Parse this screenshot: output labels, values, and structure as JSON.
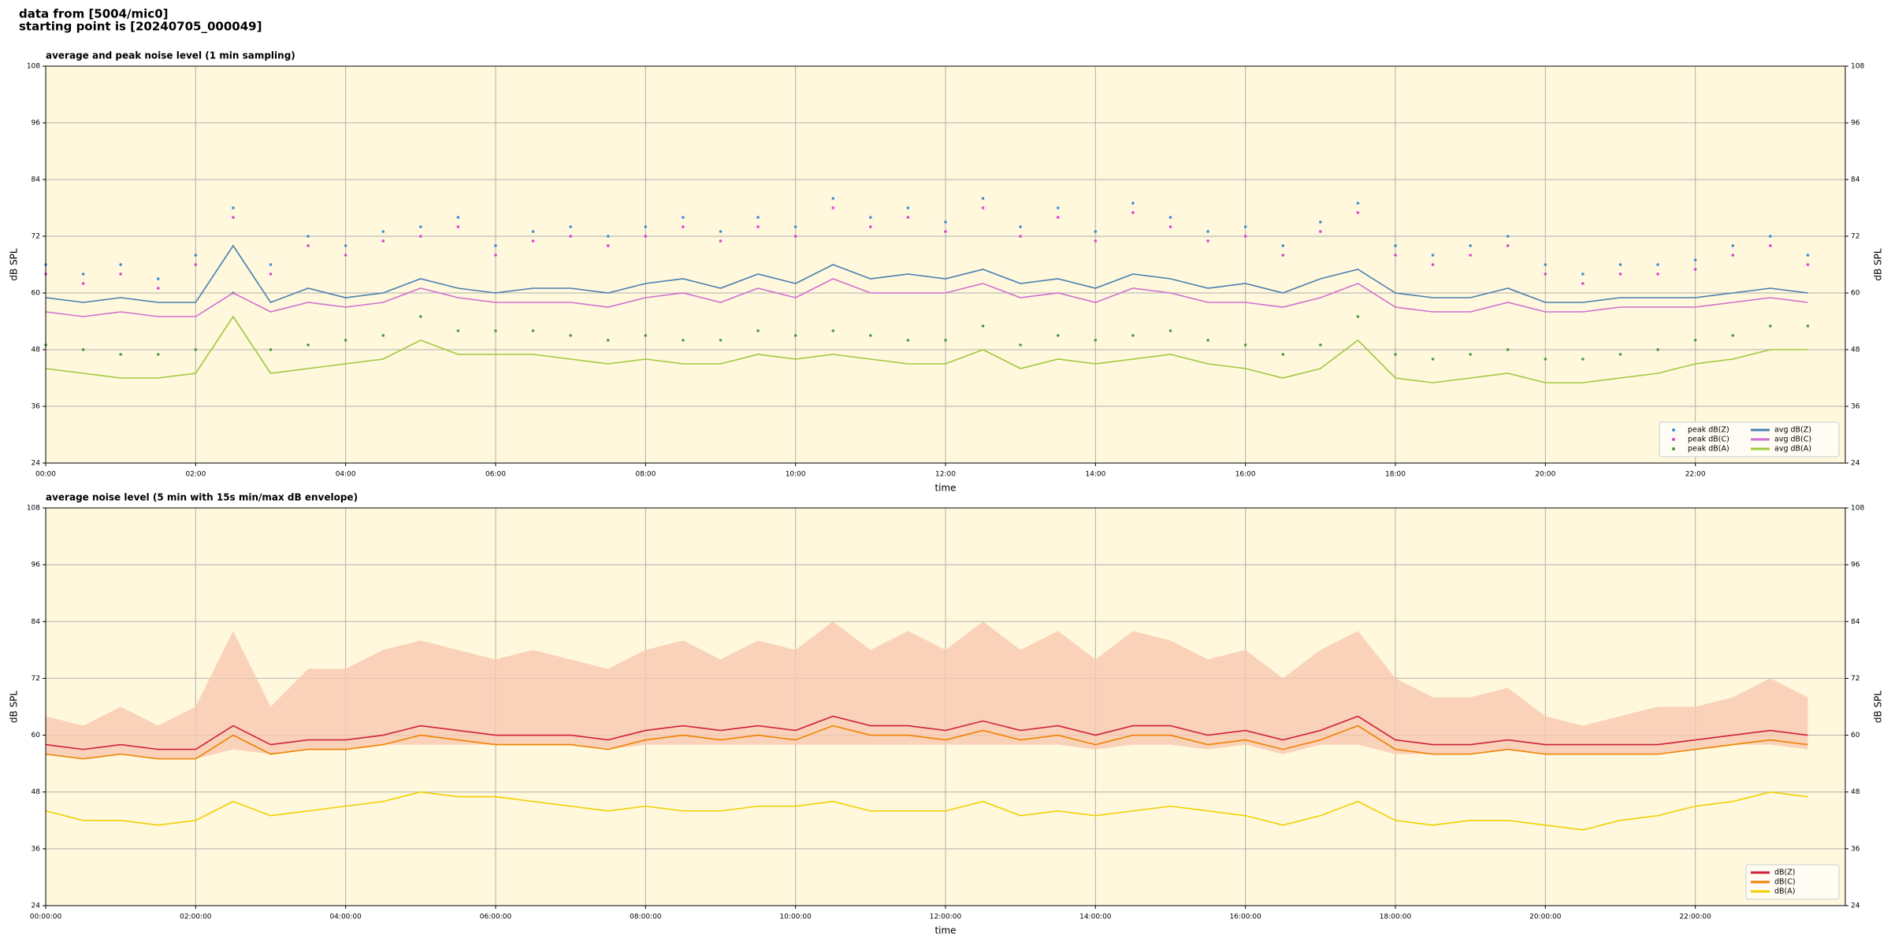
{
  "header": {
    "lines": [
      "data from [5004/mic0]",
      "starting point is [20240705_000049]"
    ]
  },
  "chart_data": [
    {
      "type": "line",
      "title": "average and peak noise level (1 min sampling)",
      "xlabel": "time",
      "ylabel": "dB SPL",
      "y2label": "dB SPL",
      "xlim": [
        0,
        24
      ],
      "ylim": [
        24,
        108
      ],
      "yticks": [
        24,
        36,
        48,
        60,
        72,
        84,
        96,
        108
      ],
      "xticks": [
        {
          "value": 0,
          "label": "00:00"
        },
        {
          "value": 2,
          "label": "02:00"
        },
        {
          "value": 4,
          "label": "04:00"
        },
        {
          "value": 6,
          "label": "06:00"
        },
        {
          "value": 8,
          "label": "08:00"
        },
        {
          "value": 10,
          "label": "10:00"
        },
        {
          "value": 12,
          "label": "12:00"
        },
        {
          "value": 14,
          "label": "14:00"
        },
        {
          "value": 16,
          "label": "16:00"
        },
        {
          "value": 18,
          "label": "18:00"
        },
        {
          "value": 20,
          "label": "20:00"
        },
        {
          "value": 22,
          "label": "22:00"
        }
      ],
      "grid": true,
      "legend": "lower right",
      "legend_columns": 2,
      "x": [
        0,
        0.5,
        1,
        1.5,
        2,
        2.5,
        3,
        3.5,
        4,
        4.5,
        5,
        5.5,
        6,
        6.5,
        7,
        7.5,
        8,
        8.5,
        9,
        9.5,
        10,
        10.5,
        11,
        11.5,
        12,
        12.5,
        13,
        13.5,
        14,
        14.5,
        15,
        15.5,
        16,
        16.5,
        17,
        17.5,
        18,
        18.5,
        19,
        19.5,
        20,
        20.5,
        21,
        21.5,
        22,
        22.5,
        23,
        23.5
      ],
      "series": [
        {
          "name": "peak dB(Z)",
          "kind": "scatter",
          "color": "#3a8fd8",
          "values": [
            66,
            64,
            66,
            63,
            68,
            78,
            66,
            72,
            70,
            73,
            74,
            76,
            70,
            73,
            74,
            72,
            74,
            76,
            73,
            76,
            74,
            80,
            76,
            78,
            75,
            80,
            74,
            78,
            73,
            79,
            76,
            73,
            74,
            70,
            75,
            79,
            70,
            68,
            70,
            72,
            66,
            64,
            66,
            66,
            67,
            70,
            72,
            68
          ]
        },
        {
          "name": "peak dB(C)",
          "kind": "scatter",
          "color": "#e040d0",
          "values": [
            64,
            62,
            64,
            61,
            66,
            76,
            64,
            70,
            68,
            71,
            72,
            74,
            68,
            71,
            72,
            70,
            72,
            74,
            71,
            74,
            72,
            78,
            74,
            76,
            73,
            78,
            72,
            76,
            71,
            77,
            74,
            71,
            72,
            68,
            73,
            77,
            68,
            66,
            68,
            70,
            64,
            62,
            64,
            64,
            65,
            68,
            70,
            66
          ]
        },
        {
          "name": "peak dB(A)",
          "kind": "scatter",
          "color": "#4c9a40",
          "values": [
            49,
            48,
            47,
            47,
            48,
            60,
            48,
            49,
            50,
            51,
            55,
            52,
            52,
            52,
            51,
            50,
            51,
            50,
            50,
            52,
            51,
            52,
            51,
            50,
            50,
            53,
            49,
            51,
            50,
            51,
            52,
            50,
            49,
            47,
            49,
            55,
            47,
            46,
            47,
            48,
            46,
            46,
            47,
            48,
            50,
            51,
            53,
            53
          ]
        },
        {
          "name": "avg dB(Z)",
          "kind": "line",
          "color": "#4a7fb0",
          "values": [
            59,
            58,
            59,
            58,
            58,
            70,
            58,
            61,
            59,
            60,
            63,
            61,
            60,
            61,
            61,
            60,
            62,
            63,
            61,
            64,
            62,
            66,
            63,
            64,
            63,
            65,
            62,
            63,
            61,
            64,
            63,
            61,
            62,
            60,
            63,
            65,
            60,
            59,
            59,
            61,
            58,
            58,
            59,
            59,
            59,
            60,
            61,
            60
          ]
        },
        {
          "name": "avg dB(C)",
          "kind": "line",
          "color": "#d070d0",
          "values": [
            56,
            55,
            56,
            55,
            55,
            60,
            56,
            58,
            57,
            58,
            61,
            59,
            58,
            58,
            58,
            57,
            59,
            60,
            58,
            61,
            59,
            63,
            60,
            60,
            60,
            62,
            59,
            60,
            58,
            61,
            60,
            58,
            58,
            57,
            59,
            62,
            57,
            56,
            56,
            58,
            56,
            56,
            57,
            57,
            57,
            58,
            59,
            58
          ]
        },
        {
          "name": "avg dB(A)",
          "kind": "line",
          "color": "#a0c840",
          "values": [
            44,
            43,
            42,
            42,
            43,
            55,
            43,
            44,
            45,
            46,
            50,
            47,
            47,
            47,
            46,
            45,
            46,
            45,
            45,
            47,
            46,
            47,
            46,
            45,
            45,
            48,
            44,
            46,
            45,
            46,
            47,
            45,
            44,
            42,
            44,
            50,
            42,
            41,
            42,
            43,
            41,
            41,
            42,
            43,
            45,
            46,
            48,
            48
          ]
        }
      ]
    },
    {
      "type": "line",
      "title": "average noise level (5 min with 15s min/max dB envelope)",
      "xlabel": "time",
      "ylabel": "dB SPL",
      "y2label": "dB SPL",
      "xlim": [
        0,
        24
      ],
      "ylim": [
        24,
        108
      ],
      "yticks": [
        24,
        36,
        48,
        60,
        72,
        84,
        96,
        108
      ],
      "xticks": [
        {
          "value": 0,
          "label": "00:00:00"
        },
        {
          "value": 2,
          "label": "02:00:00"
        },
        {
          "value": 4,
          "label": "04:00:00"
        },
        {
          "value": 6,
          "label": "06:00:00"
        },
        {
          "value": 8,
          "label": "08:00:00"
        },
        {
          "value": 10,
          "label": "10:00:00"
        },
        {
          "value": 12,
          "label": "12:00:00"
        },
        {
          "value": 14,
          "label": "14:00:00"
        },
        {
          "value": 16,
          "label": "16:00:00"
        },
        {
          "value": 18,
          "label": "18:00:00"
        },
        {
          "value": 20,
          "label": "20:00:00"
        },
        {
          "value": 22,
          "label": "22:00:00"
        }
      ],
      "grid": true,
      "legend": "lower right",
      "legend_columns": 1,
      "x": [
        0,
        0.5,
        1,
        1.5,
        2,
        2.5,
        3,
        3.5,
        4,
        4.5,
        5,
        5.5,
        6,
        6.5,
        7,
        7.5,
        8,
        8.5,
        9,
        9.5,
        10,
        10.5,
        11,
        11.5,
        12,
        12.5,
        13,
        13.5,
        14,
        14.5,
        15,
        15.5,
        16,
        16.5,
        17,
        17.5,
        18,
        18.5,
        19,
        19.5,
        20,
        20.5,
        21,
        21.5,
        22,
        22.5,
        23,
        23.5
      ],
      "envelope": {
        "color": "#f7c8b0",
        "upper": [
          64,
          62,
          66,
          62,
          66,
          82,
          66,
          74,
          74,
          78,
          80,
          78,
          76,
          78,
          76,
          74,
          78,
          80,
          76,
          80,
          78,
          84,
          78,
          82,
          78,
          84,
          78,
          82,
          76,
          82,
          80,
          76,
          78,
          72,
          78,
          82,
          72,
          68,
          68,
          70,
          64,
          62,
          64,
          66,
          66,
          68,
          72,
          68
        ],
        "lower": [
          56,
          55,
          56,
          55,
          55,
          57,
          56,
          57,
          57,
          58,
          58,
          58,
          58,
          58,
          58,
          57,
          58,
          58,
          58,
          58,
          58,
          58,
          58,
          58,
          58,
          58,
          58,
          58,
          57,
          58,
          58,
          57,
          58,
          56,
          58,
          58,
          56,
          56,
          56,
          57,
          56,
          56,
          56,
          56,
          57,
          58,
          58,
          57
        ]
      },
      "series": [
        {
          "name": "dB(Z)",
          "kind": "line",
          "color": "#d0203a",
          "values": [
            58,
            57,
            58,
            57,
            57,
            62,
            58,
            59,
            59,
            60,
            62,
            61,
            60,
            60,
            60,
            59,
            61,
            62,
            61,
            62,
            61,
            64,
            62,
            62,
            61,
            63,
            61,
            62,
            60,
            62,
            62,
            60,
            61,
            59,
            61,
            64,
            59,
            58,
            58,
            59,
            58,
            58,
            58,
            58,
            59,
            60,
            61,
            60
          ]
        },
        {
          "name": "dB(C)",
          "kind": "line",
          "color": "#f08000",
          "values": [
            56,
            55,
            56,
            55,
            55,
            60,
            56,
            57,
            57,
            58,
            60,
            59,
            58,
            58,
            58,
            57,
            59,
            60,
            59,
            60,
            59,
            62,
            60,
            60,
            59,
            61,
            59,
            60,
            58,
            60,
            60,
            58,
            59,
            57,
            59,
            62,
            57,
            56,
            56,
            57,
            56,
            56,
            56,
            56,
            57,
            58,
            59,
            58
          ]
        },
        {
          "name": "dB(A)",
          "kind": "line",
          "color": "#f0d000",
          "values": [
            44,
            42,
            42,
            41,
            42,
            46,
            43,
            44,
            45,
            46,
            48,
            47,
            47,
            46,
            45,
            44,
            45,
            44,
            44,
            45,
            45,
            46,
            44,
            44,
            44,
            46,
            43,
            44,
            43,
            44,
            45,
            44,
            43,
            41,
            43,
            46,
            42,
            41,
            42,
            42,
            41,
            40,
            42,
            43,
            45,
            46,
            48,
            47
          ]
        }
      ]
    }
  ]
}
